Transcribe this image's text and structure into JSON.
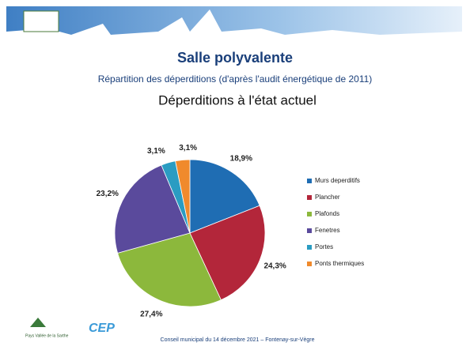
{
  "slide": {
    "title": "Salle polyvalente",
    "subtitle": "Répartition des déperditions (d'après l'audit énergétique de 2011)"
  },
  "chart_data": {
    "type": "pie",
    "title": "Déperditions à l'état actuel",
    "categories": [
      "Murs deperditifs",
      "Plancher",
      "Plafonds",
      "Fenetres",
      "Portes",
      "Ponts thermiques"
    ],
    "values": [
      18.9,
      24.3,
      27.4,
      23.2,
      3.1,
      3.1
    ],
    "value_labels": [
      "18,9%",
      "24,3%",
      "27,4%",
      "23,2%",
      "3,1%",
      "3,1%"
    ],
    "colors": [
      "#1f6db3",
      "#b3263a",
      "#8cb83c",
      "#5a4a9c",
      "#2a9cc2",
      "#f08a2c"
    ],
    "legend": "right"
  },
  "footer": {
    "text": "Conseil municipal du 14 décembre 2021 – Fontenay-sur-Vègre",
    "logo1": "Pays Vallée de la Sarthe",
    "logo2": "CEP"
  }
}
